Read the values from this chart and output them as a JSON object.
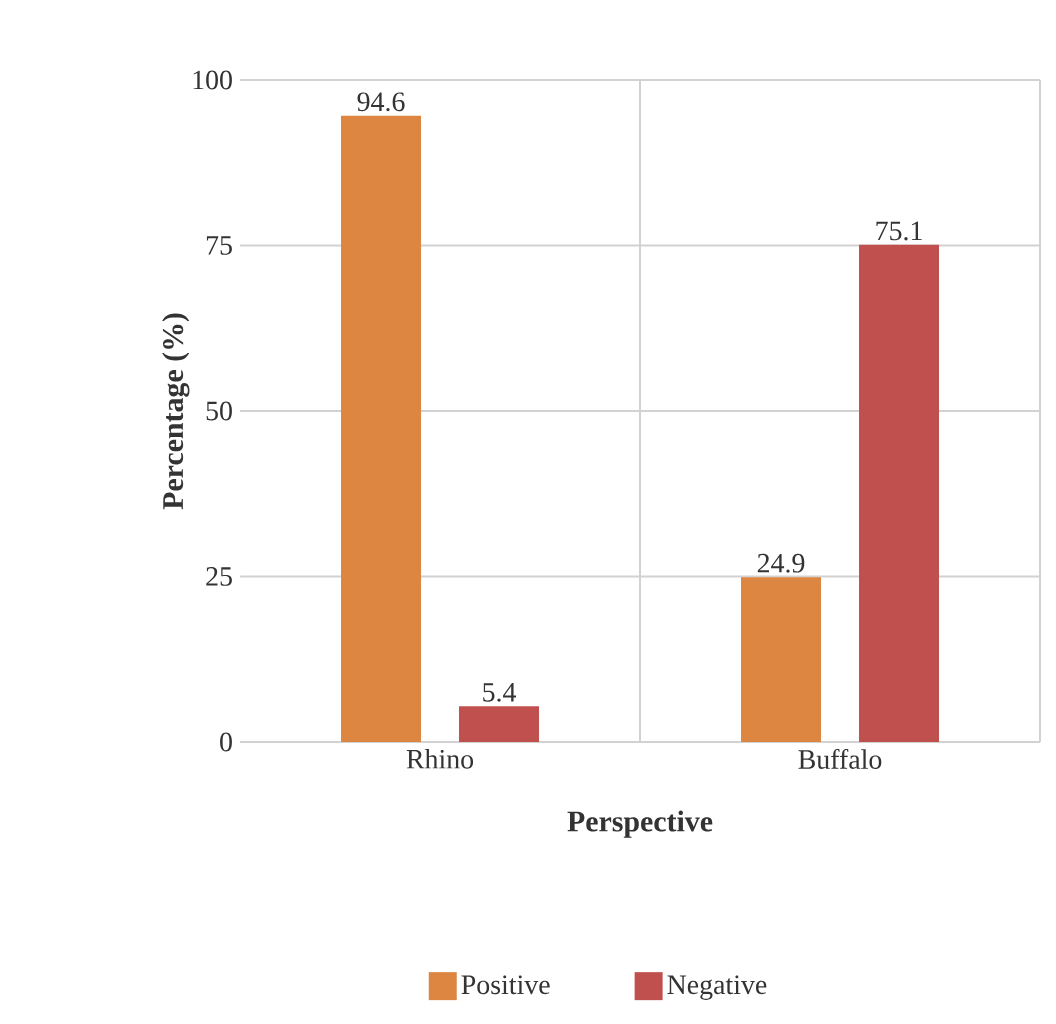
{
  "chart_data": {
    "type": "bar",
    "xlabel": "Perspective",
    "ylabel": "Percentage (%)",
    "categories": [
      "Rhino",
      "Buffalo"
    ],
    "series": [
      {
        "name": "Positive",
        "color": "#dc8642",
        "values": [
          94.6,
          24.9
        ]
      },
      {
        "name": "Negative",
        "color": "#c0504d",
        "values": [
          5.4,
          75.1
        ]
      }
    ],
    "ylim": [
      0,
      100
    ],
    "yticks": [
      0,
      25,
      50,
      75,
      100
    ],
    "grid": true,
    "legend": "bottom",
    "data_labels": true
  }
}
